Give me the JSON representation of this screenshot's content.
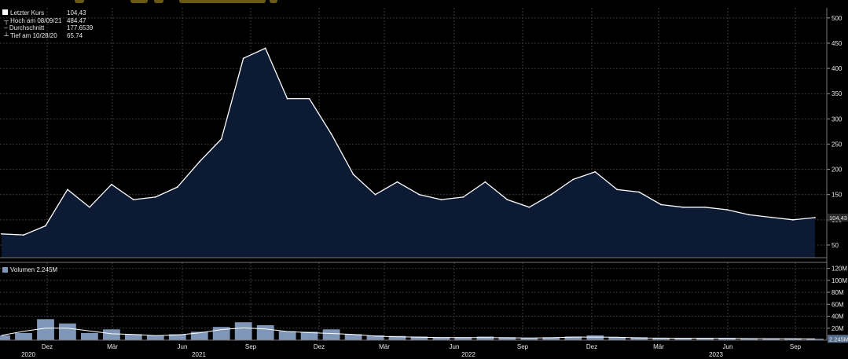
{
  "chart_data": [
    {
      "type": "area",
      "series": [
        {
          "name": "Letzter Kurs",
          "x": [
            "2020-09",
            "2020-10",
            "2020-11",
            "2020-12",
            "2021-01",
            "2021-02",
            "2021-03",
            "2021-04",
            "2021-05",
            "2021-06",
            "2021-07",
            "2021-08",
            "2021-09",
            "2021-10",
            "2021-11",
            "2021-12",
            "2022-01",
            "2022-02",
            "2022-03",
            "2022-04",
            "2022-05",
            "2022-06",
            "2022-07",
            "2022-08",
            "2022-09",
            "2022-10",
            "2022-11",
            "2022-12",
            "2023-01",
            "2023-02",
            "2023-03",
            "2023-04",
            "2023-05",
            "2023-06",
            "2023-07",
            "2023-08",
            "2023-09",
            "2023-10"
          ],
          "values": [
            72,
            70,
            88,
            160,
            125,
            170,
            140,
            145,
            165,
            215,
            260,
            420,
            440,
            340,
            340,
            270,
            190,
            150,
            175,
            150,
            140,
            145,
            175,
            140,
            125,
            150,
            180,
            195,
            160,
            155,
            130,
            125,
            125,
            120,
            110,
            105,
            100,
            104.43
          ]
        }
      ],
      "last_value_label": "104,43",
      "ylim": [
        25,
        520
      ],
      "yticks": [
        "50",
        "100",
        "150",
        "200",
        "250",
        "300",
        "350",
        "400",
        "450",
        "500"
      ],
      "legend": {
        "position": "top-left",
        "rows": [
          {
            "label": "Letzter Kurs",
            "value": "104,43"
          },
          {
            "label": "Hoch am 08/09/21",
            "value": "484.47"
          },
          {
            "label": "Durchschnitt",
            "value": "177.6539"
          },
          {
            "label": "Tief am 10/28/20",
            "value": "65.74"
          }
        ]
      },
      "grid": true
    },
    {
      "type": "bar",
      "series": [
        {
          "name": "Volumen",
          "x": [
            "2020-09",
            "2020-10",
            "2020-11",
            "2020-12",
            "2021-01",
            "2021-02",
            "2021-03",
            "2021-04",
            "2021-05",
            "2021-06",
            "2021-07",
            "2021-08",
            "2021-09",
            "2021-10",
            "2021-11",
            "2021-12",
            "2022-01",
            "2022-02",
            "2022-03",
            "2022-04",
            "2022-05",
            "2022-06",
            "2022-07",
            "2022-08",
            "2022-09",
            "2022-10",
            "2022-11",
            "2022-12",
            "2023-01",
            "2023-02",
            "2023-03",
            "2023-04",
            "2023-05",
            "2023-06",
            "2023-07",
            "2023-08",
            "2023-09",
            "2023-10"
          ],
          "values": [
            8,
            12,
            35,
            28,
            12,
            18,
            10,
            8,
            10,
            14,
            22,
            30,
            25,
            15,
            14,
            18,
            10,
            8,
            7,
            6,
            5,
            5,
            6,
            5,
            4,
            5,
            6,
            8,
            5,
            5,
            4,
            4,
            4,
            4,
            3,
            3,
            3,
            2.245
          ]
        }
      ],
      "legend_label": "Volumen",
      "legend_value": "2.245M",
      "last_value_label": "2.245M",
      "ylim": [
        0,
        130
      ],
      "yticks": [
        "20M",
        "40M",
        "60M",
        "80M",
        "100M",
        "120M"
      ],
      "grid": true
    }
  ],
  "x_axis": {
    "month_labels": [
      "Dez",
      "Mär",
      "Jun",
      "Sep",
      "Dez",
      "Mär",
      "Jun",
      "Sep",
      "Dez",
      "Mär",
      "Jun",
      "Sep"
    ],
    "year_labels": [
      "2020",
      "2021",
      "2022",
      "2023"
    ]
  },
  "colors": {
    "area_fill": "#0c1a33",
    "price_line": "#ffffff",
    "volume_bar": "#7f96b8",
    "volume_avg": "#ffffff",
    "grid": "#3a3a3a",
    "text": "#e8e8e8"
  }
}
